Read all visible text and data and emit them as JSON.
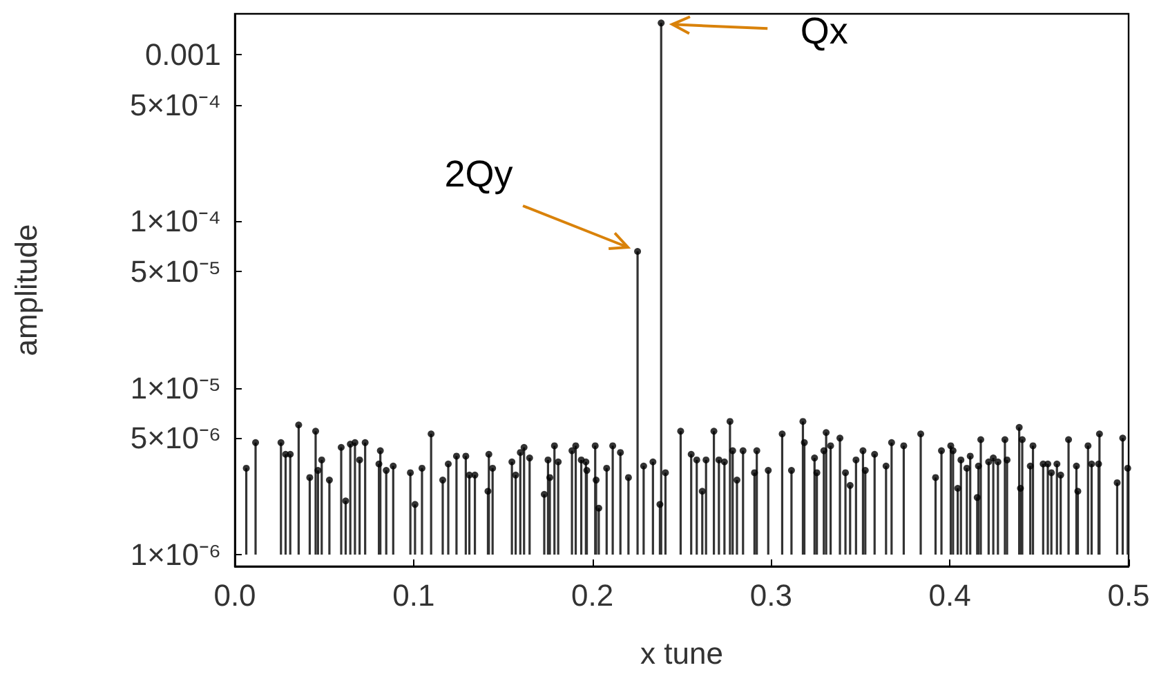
{
  "chart_data": {
    "type": "lollipop",
    "xlabel": "x tune",
    "ylabel": "amplitude",
    "log": "y",
    "grid": false,
    "marker": "circle",
    "xlim": [
      0,
      0.5
    ],
    "xticks": [
      {
        "value": 0,
        "label": "0.0"
      },
      0.1,
      0.2,
      0.3,
      0.4,
      0.5
    ],
    "ylim": [
      8.5e-07,
      0.00176
    ],
    "yticks": [
      {
        "value": 1e-06,
        "label": "1×10⁻⁶"
      },
      {
        "value": 5e-06,
        "label": "5×10⁻⁶"
      },
      {
        "value": 1e-05,
        "label": "1×10⁻⁵"
      },
      {
        "value": 5e-05,
        "label": "5×10⁻⁵"
      },
      {
        "value": 0.0001,
        "label": "1×10⁻⁴"
      },
      {
        "value": 0.0005,
        "label": "5×10⁻⁴"
      },
      0.001
    ],
    "annotations": [
      {
        "text": "2Qy",
        "x": 0.2253,
        "y": 6.6e-05
      },
      {
        "text": "Qx",
        "x": 0.2385,
        "y": 0.00155
      }
    ],
    "series": [
      {
        "color": "#333333",
        "x": [
          0.0064,
          0.0116,
          0.0258,
          0.0284,
          0.031,
          0.0357,
          0.0419,
          0.0452,
          0.0465,
          0.0486,
          0.0529,
          0.0595,
          0.062,
          0.0646,
          0.0672,
          0.0698,
          0.0729,
          0.0806,
          0.0814,
          0.0847,
          0.0886,
          0.0982,
          0.1008,
          0.1047,
          0.1098,
          0.1163,
          0.1194,
          0.124,
          0.1292,
          0.1312,
          0.1343,
          0.1416,
          0.1421,
          0.1442,
          0.155,
          0.1571,
          0.1597,
          0.1618,
          0.1649,
          0.1731,
          0.1752,
          0.1762,
          0.1788,
          0.1809,
          0.1886,
          0.1907,
          0.1938,
          0.1964,
          0.1969,
          0.2016,
          0.2021,
          0.2036,
          0.208,
          0.2114,
          0.2157,
          0.2202,
          0.2253,
          0.2287,
          0.2339,
          0.2378,
          0.2385,
          0.2409,
          0.2494,
          0.2553,
          0.2584,
          0.2615,
          0.2636,
          0.268,
          0.2708,
          0.2739,
          0.277,
          0.2785,
          0.2809,
          0.2843,
          0.2907,
          0.292,
          0.2984,
          0.3062,
          0.3114,
          0.3178,
          0.3186,
          0.3243,
          0.3256,
          0.3295,
          0.3308,
          0.3333,
          0.3385,
          0.3416,
          0.3442,
          0.3475,
          0.3514,
          0.3527,
          0.3579,
          0.3643,
          0.3674,
          0.3742,
          0.3837,
          0.392,
          0.3953,
          0.4005,
          0.4018,
          0.4044,
          0.4062,
          0.4095,
          0.4114,
          0.4153,
          0.416,
          0.4173,
          0.4217,
          0.4243,
          0.4269,
          0.4308,
          0.432,
          0.4388,
          0.4395,
          0.4405,
          0.445,
          0.4465,
          0.4522,
          0.4548,
          0.4568,
          0.4599,
          0.462,
          0.4664,
          0.4708,
          0.4716,
          0.4773,
          0.4793,
          0.4832,
          0.4837,
          0.4936,
          0.4967,
          0.4995
        ],
        "values": [
          3.3e-06,
          4.7e-06,
          4.7e-06,
          4e-06,
          4e-06,
          6e-06,
          2.9e-06,
          5.5e-06,
          3.2e-06,
          3.7e-06,
          2.8e-06,
          4.4e-06,
          2.1e-06,
          4.6e-06,
          4.7e-06,
          3.7e-06,
          4.7e-06,
          3.5e-06,
          4.2e-06,
          3.2e-06,
          3.4e-06,
          3.1e-06,
          2e-06,
          3.3e-06,
          5.3e-06,
          2.8e-06,
          3.5e-06,
          3.9e-06,
          3.9e-06,
          3e-06,
          3e-06,
          2.4e-06,
          4e-06,
          3.3e-06,
          3.6e-06,
          3e-06,
          4.1e-06,
          4.4e-06,
          3.8e-06,
          2.3e-06,
          3.7e-06,
          2.9e-06,
          4.5e-06,
          3.6e-06,
          4.2e-06,
          4.5e-06,
          3.7e-06,
          3.6e-06,
          3.2e-06,
          4.5e-06,
          2.8e-06,
          1.9e-06,
          3.3e-06,
          4.5e-06,
          4.1e-06,
          2.9e-06,
          6.6e-05,
          3.4e-06,
          3.6e-06,
          2e-06,
          0.00155,
          3.1e-06,
          5.5e-06,
          4e-06,
          3.7e-06,
          2.4e-06,
          3.7e-06,
          5.5e-06,
          3.7e-06,
          3.6e-06,
          6.3e-06,
          4.2e-06,
          2.8e-06,
          4.2e-06,
          3.1e-06,
          4.2e-06,
          3.2e-06,
          5.3e-06,
          3.2e-06,
          6.3e-06,
          4.7e-06,
          3.8e-06,
          3.1e-06,
          4.2e-06,
          5.4e-06,
          4.5e-06,
          5e-06,
          3.1e-06,
          2.6e-06,
          3.7e-06,
          4.2e-06,
          3.2e-06,
          4e-06,
          3.4e-06,
          4.7e-06,
          4.5e-06,
          5.3e-06,
          2.9e-06,
          4.2e-06,
          4.5e-06,
          4.2e-06,
          2.5e-06,
          3.7e-06,
          3.3e-06,
          3.9e-06,
          2.2e-06,
          3.4e-06,
          4.9e-06,
          3.6e-06,
          3.8e-06,
          3.6e-06,
          4.9e-06,
          3.7e-06,
          5.8e-06,
          2.5e-06,
          4.9e-06,
          3.4e-06,
          4.5e-06,
          3.5e-06,
          3.5e-06,
          3.1e-06,
          3.5e-06,
          3e-06,
          4.9e-06,
          3.4e-06,
          2.4e-06,
          4.5e-06,
          3.5e-06,
          3.5e-06,
          5.3e-06,
          2.7e-06,
          5e-06,
          3.3e-06
        ]
      }
    ]
  }
}
